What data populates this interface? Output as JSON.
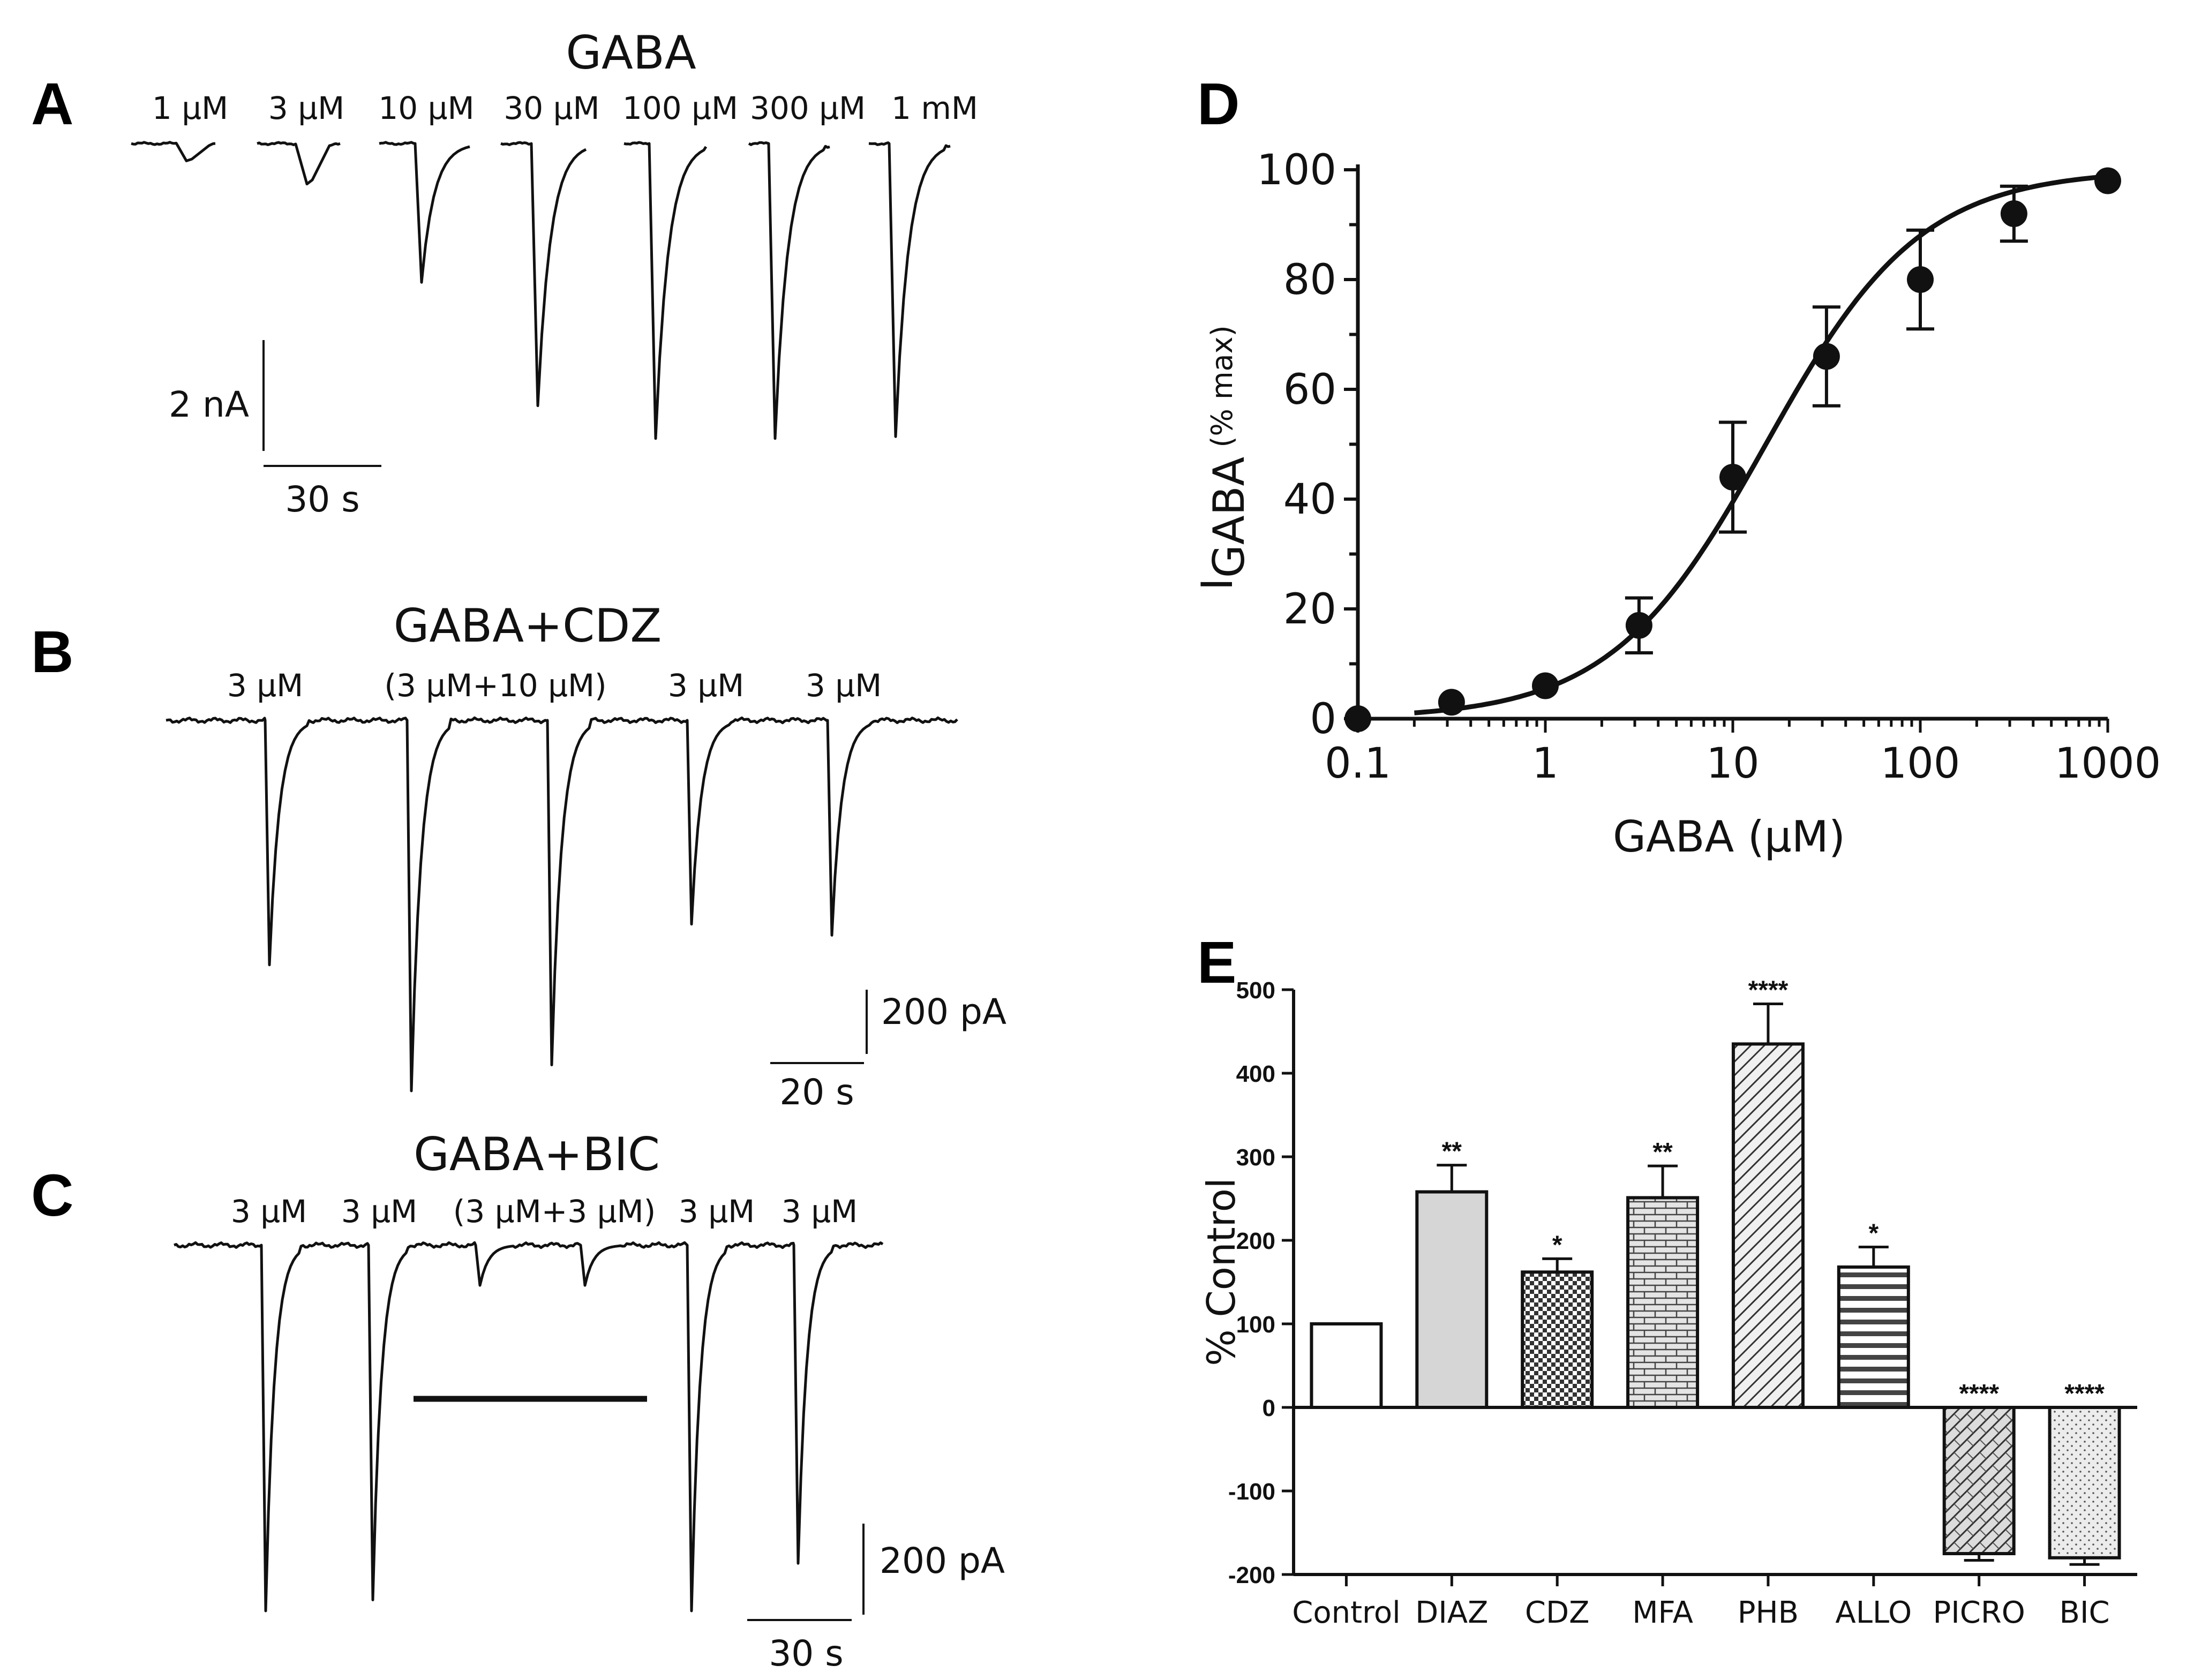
{
  "panels": {
    "A": {
      "letter": "A",
      "title": "GABA",
      "concentrations": [
        "1 μM",
        "3 μM",
        "10 μM",
        "30 μM",
        "100 μM",
        "300 μM",
        "1 mM"
      ],
      "peak_fraction": [
        0.09,
        0.21,
        0.72,
        1.36,
        1.53,
        1.53,
        1.52
      ],
      "scale_current": "2 nA",
      "scale_time": "30 s"
    },
    "B": {
      "letter": "B",
      "title": "GABA+CDZ",
      "labels": [
        "3 μM",
        "(3 μM+10 μM)",
        "3 μM",
        "3 μM"
      ],
      "peak_fraction": [
        0.66,
        1.0,
        0.93,
        0.55,
        0.58
      ],
      "scale_current": "200 pA",
      "scale_time": "20 s"
    },
    "C": {
      "letter": "C",
      "title": "GABA+BIC",
      "labels": [
        "3 μM",
        "3 μM",
        "(3 μM+3 μM)",
        "3 μM",
        "3 μM"
      ],
      "peak_fraction": [
        1.0,
        0.97,
        0.11,
        0.11,
        1.0,
        0.87
      ],
      "scale_current": "200 pA",
      "scale_time": "30 s"
    },
    "D": {
      "letter": "D"
    },
    "E": {
      "letter": "E"
    }
  },
  "chart_data": [
    {
      "panel": "D",
      "type": "scatter",
      "xscale": "log",
      "x": [
        0.1,
        0.316,
        1,
        3.16,
        10,
        31.6,
        100,
        316,
        1000
      ],
      "y": [
        0,
        3,
        6,
        17,
        44,
        66,
        80,
        92,
        98
      ],
      "err": [
        0,
        0,
        0,
        5,
        10,
        9,
        9,
        5,
        0
      ],
      "fit": "sigmoid (Hill) curve",
      "xlim": [
        0.1,
        1000
      ],
      "ylim": [
        0,
        100
      ],
      "xticks": [
        "0.1",
        "1",
        "10",
        "100",
        "1000"
      ],
      "yticks": [
        "0",
        "20",
        "40",
        "60",
        "80",
        "100"
      ],
      "xlabel": "GABA (μM)",
      "ylabel_main": "I",
      "ylabel_sub": "GABA",
      "ylabel_unit": " (% max)"
    },
    {
      "panel": "E",
      "type": "bar",
      "categories": [
        "Control",
        "DIAZ",
        "CDZ",
        "MFA",
        "PHB",
        "ALLO",
        "PICRO",
        "BIC"
      ],
      "values": [
        100,
        258,
        162,
        251,
        435,
        168,
        -175,
        -180
      ],
      "err": [
        0,
        32,
        16,
        38,
        48,
        24,
        8,
        8
      ],
      "significance": [
        "",
        "**",
        "*",
        "**",
        "****",
        "*",
        "****",
        "****"
      ],
      "ylim": [
        -200,
        500
      ],
      "yticks": [
        "-200",
        "-100",
        "0",
        "100",
        "200",
        "300",
        "400",
        "500"
      ],
      "ylabel": "% Control"
    }
  ]
}
